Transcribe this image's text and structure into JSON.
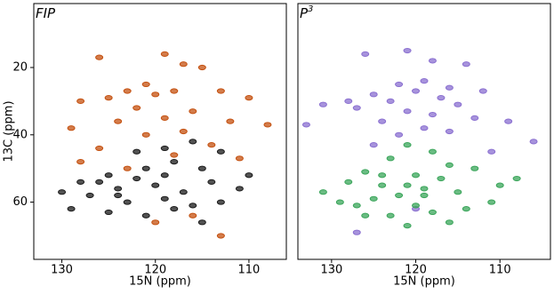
{
  "chart_data": [
    {
      "type": "scatter",
      "title": "FIP",
      "xlabel": "15N (ppm)",
      "ylabel": "13C (ppm)",
      "xlim": [
        133,
        106
      ],
      "ylim": [
        77,
        1
      ],
      "xticks": [
        130,
        120,
        110
      ],
      "yticks": [
        20,
        40,
        60
      ],
      "series": [
        {
          "color": "#c4500f",
          "x": [
            126,
            119,
            117,
            115,
            121,
            123,
            120,
            118,
            125,
            128,
            113,
            110,
            122,
            116,
            119,
            124,
            129,
            112,
            108,
            121,
            117,
            114,
            126,
            118,
            111,
            123,
            128,
            120,
            116,
            113
          ],
          "y": [
            17,
            16,
            19,
            20,
            25,
            27,
            28,
            27,
            29,
            30,
            27,
            29,
            32,
            33,
            35,
            36,
            38,
            36,
            37,
            40,
            39,
            43,
            44,
            46,
            47,
            50,
            48,
            66,
            64,
            70
          ]
        },
        {
          "color": "#1a1a1a",
          "x": [
            122,
            119,
            116,
            113,
            125,
            121,
            118,
            115,
            128,
            124,
            120,
            117,
            114,
            111,
            127,
            123,
            119,
            116,
            130,
            125,
            121,
            118,
            113,
            126,
            110,
            122,
            119,
            129,
            115,
            124
          ],
          "y": [
            45,
            44,
            42,
            45,
            52,
            50,
            48,
            50,
            54,
            56,
            55,
            57,
            54,
            56,
            58,
            60,
            59,
            61,
            57,
            63,
            64,
            62,
            60,
            54,
            52,
            53,
            52,
            62,
            66,
            58
          ]
        }
      ]
    },
    {
      "type": "scatter",
      "title": "P",
      "title_superscript": "3",
      "xlabel": "15N (ppm)",
      "xlim": [
        134,
        104
      ],
      "ylim": [
        77,
        1
      ],
      "xticks": [
        130,
        120,
        110
      ],
      "series": [
        {
          "color": "#8a6fd0",
          "x": [
            126,
            121,
            118,
            114,
            122,
            119,
            116,
            112,
            120,
            125,
            128,
            123,
            117,
            115,
            131,
            127,
            121,
            118,
            113,
            124,
            109,
            119,
            116,
            122,
            106,
            125,
            111,
            133,
            120,
            127
          ],
          "y": [
            16,
            15,
            18,
            19,
            25,
            24,
            26,
            27,
            27,
            28,
            30,
            30,
            29,
            31,
            31,
            32,
            33,
            34,
            35,
            36,
            36,
            38,
            39,
            40,
            42,
            43,
            45,
            37,
            62,
            69
          ]
        },
        {
          "color": "#3aa55a",
          "x": [
            121,
            118,
            123,
            116,
            126,
            120,
            113,
            128,
            124,
            121,
            119,
            117,
            115,
            122,
            125,
            110,
            131,
            127,
            120,
            118,
            114,
            123,
            116,
            129,
            111,
            119,
            124,
            108,
            126,
            121
          ],
          "y": [
            43,
            45,
            47,
            49,
            51,
            52,
            50,
            54,
            55,
            55,
            56,
            53,
            57,
            58,
            59,
            55,
            57,
            61,
            61,
            63,
            62,
            64,
            66,
            60,
            60,
            58,
            52,
            53,
            64,
            67
          ]
        }
      ]
    }
  ]
}
